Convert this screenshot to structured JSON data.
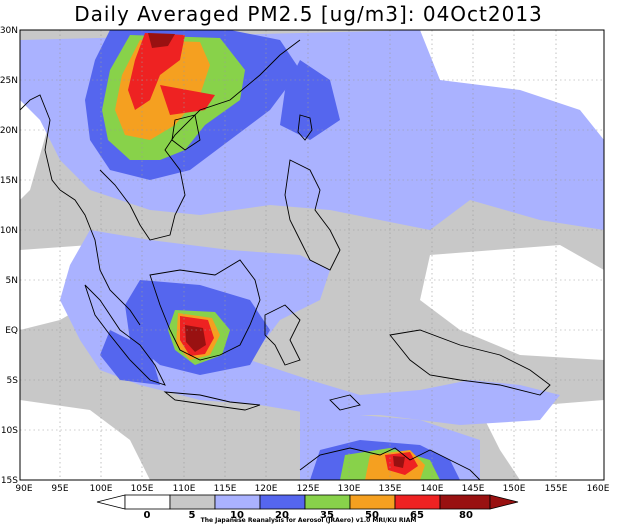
{
  "title": "Daily Averaged PM2.5 [ug/m3]: 04Oct2013",
  "credit": "The Japanese Reanalysis for Aerosol (JRAero) v1.0 MRI/KU RIAM",
  "lat_labels": [
    "30N",
    "25N",
    "20N",
    "15N",
    "10N",
    "5N",
    "EQ",
    "5S",
    "10S",
    "15S"
  ],
  "lon_labels": [
    "90E",
    "95E",
    "100E",
    "105E",
    "110E",
    "115E",
    "120E",
    "125E",
    "130E",
    "135E",
    "140E",
    "145E",
    "150E",
    "155E",
    "160E"
  ],
  "colorbar": {
    "ticks": [
      "0",
      "5",
      "10",
      "20",
      "35",
      "50",
      "65",
      "80"
    ],
    "colors": [
      "#ffffff",
      "#c8c8c8",
      "#aab2ff",
      "#5566ee",
      "#88d24a",
      "#f5a020",
      "#ee2222",
      "#991111"
    ]
  },
  "colors": {
    "level_5_10": "#c8c8c8",
    "level_10_20": "#aab2ff",
    "level_20_35": "#5566ee",
    "level_35_50": "#88d24a",
    "level_50_65": "#f5a020",
    "level_65_80": "#ee2222",
    "level_80_plus": "#991111"
  }
}
